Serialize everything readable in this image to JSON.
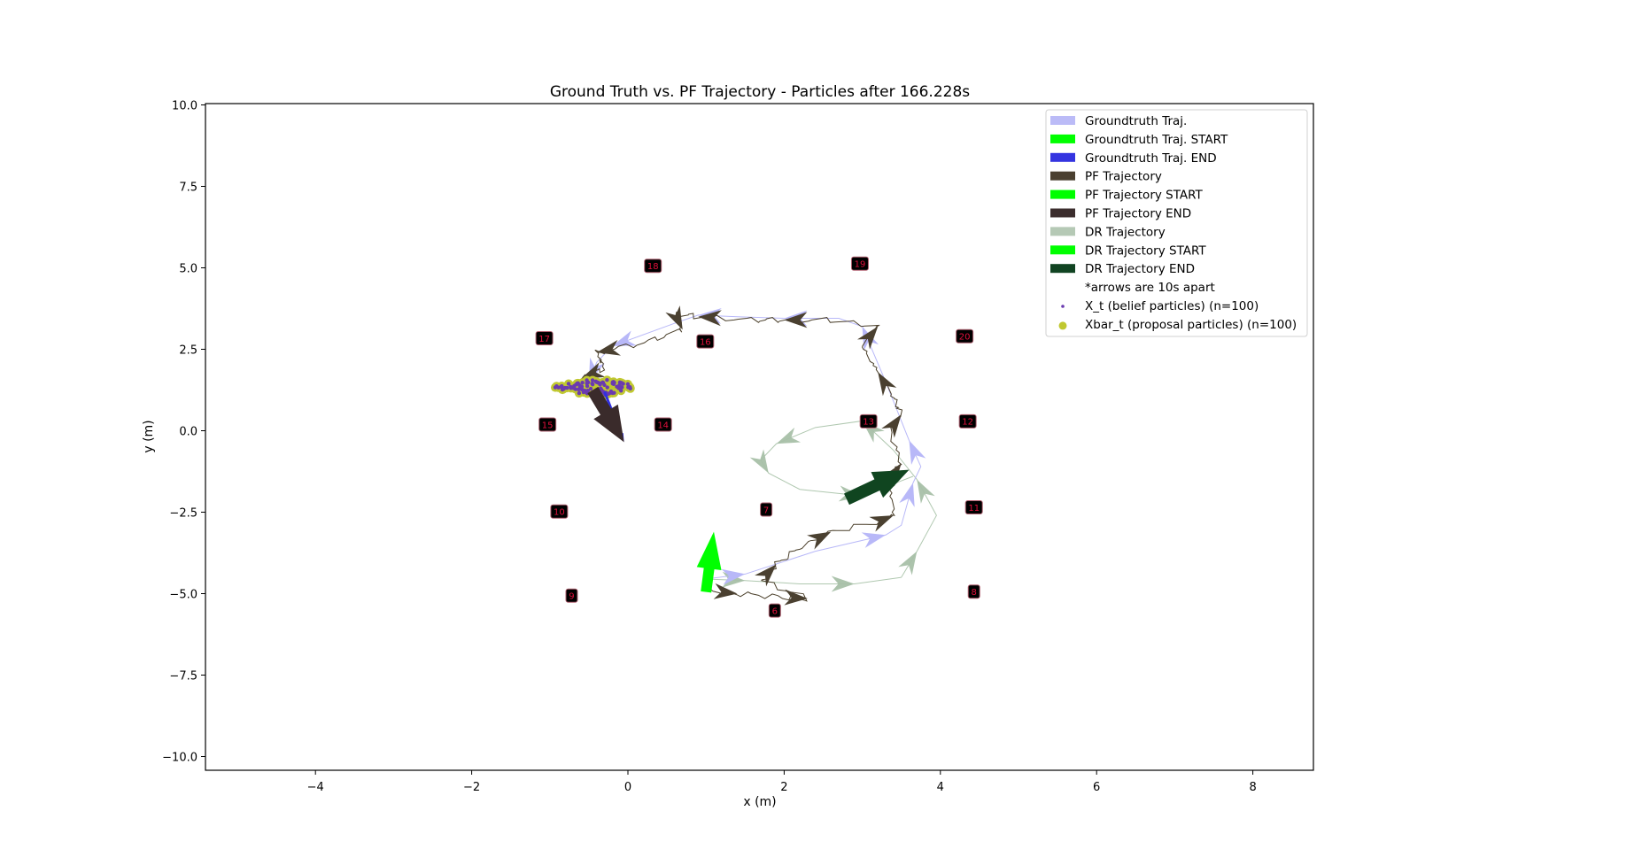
{
  "chart_data": {
    "type": "scatter",
    "title": "Ground Truth vs. PF Trajectory - Particles after 166.228s",
    "xlabel": "x (m)",
    "ylabel": "y (m)",
    "xlim": [
      -5.41,
      8.78
    ],
    "ylim": [
      -10.42,
      10.04
    ],
    "xticks": [
      -4,
      -2,
      0,
      2,
      4,
      6,
      8
    ],
    "xtick_labels": [
      "−4",
      "−2",
      "0",
      "2",
      "4",
      "6",
      "8"
    ],
    "yticks": [
      10.0,
      7.5,
      5.0,
      2.5,
      0.0,
      -2.5,
      -5.0,
      -7.5,
      -10.0
    ],
    "ytick_labels": [
      "10.0",
      "7.5",
      "5.0",
      "2.5",
      "0.0",
      "−2.5",
      "−5.0",
      "−7.5",
      "−10.0"
    ],
    "grid": false,
    "legend_position": "upper right",
    "colors": {
      "groundtruth": "#b8b8f8",
      "groundtruth_start": "#00ff00",
      "groundtruth_end": "#3030e0",
      "pf": "#4a3f2a",
      "pf_start": "#00ff00",
      "pf_end": "#3a2b2b",
      "dr": "#b0c8b0",
      "dr_start": "#00ff00",
      "dr_end": "#104520",
      "belief_particles": "#6a3ab0",
      "proposal_particles": "#c0c830",
      "landmark_fill": "#000000",
      "landmark_border": "#b06070",
      "landmark_text": "#e0103c"
    },
    "legend": [
      {
        "label": "Groundtruth Traj.",
        "swatch": "patch",
        "color": "#bbbbf7"
      },
      {
        "label": "Groundtruth Traj. START",
        "swatch": "patch",
        "color": "#00ff00"
      },
      {
        "label": "Groundtruth Traj. END",
        "swatch": "patch",
        "color": "#3434e0"
      },
      {
        "label": "PF Trajectory",
        "swatch": "patch",
        "color": "#4a4030"
      },
      {
        "label": "PF Trajectory START",
        "swatch": "patch",
        "color": "#00ff00"
      },
      {
        "label": "PF Trajectory END",
        "swatch": "patch",
        "color": "#3b2d2d"
      },
      {
        "label": "DR Trajectory",
        "swatch": "patch",
        "color": "#b5c9b5"
      },
      {
        "label": "DR Trajectory START",
        "swatch": "patch",
        "color": "#00ff00"
      },
      {
        "label": "DR Trajectory END",
        "swatch": "patch",
        "color": "#114422"
      },
      {
        "label": "*arrows are 10s apart",
        "swatch": "none",
        "color": ""
      },
      {
        "label": "X_t (belief particles) (n=100)",
        "swatch": "dot-small",
        "color": "#6a3ab0"
      },
      {
        "label": "Xbar_t (proposal particles) (n=100)",
        "swatch": "dot-large",
        "color": "#c0c830"
      }
    ],
    "landmarks": [
      {
        "id": "18",
        "x": 0.32,
        "y": 5.06
      },
      {
        "id": "19",
        "x": 2.97,
        "y": 5.13
      },
      {
        "id": "17",
        "x": -1.07,
        "y": 2.84
      },
      {
        "id": "16",
        "x": 0.99,
        "y": 2.74
      },
      {
        "id": "20",
        "x": 4.31,
        "y": 2.9
      },
      {
        "id": "15",
        "x": -1.03,
        "y": 0.19
      },
      {
        "id": "14",
        "x": 0.45,
        "y": 0.19
      },
      {
        "id": "13",
        "x": 3.08,
        "y": 0.29
      },
      {
        "id": "12",
        "x": 4.35,
        "y": 0.29
      },
      {
        "id": "10",
        "x": -0.88,
        "y": -2.48
      },
      {
        "id": "7",
        "x": 1.77,
        "y": -2.42
      },
      {
        "id": "11",
        "x": 4.43,
        "y": -2.35
      },
      {
        "id": "9",
        "x": -0.72,
        "y": -5.06
      },
      {
        "id": "8",
        "x": 4.43,
        "y": -4.94
      },
      {
        "id": "6",
        "x": 1.88,
        "y": -5.52
      }
    ],
    "series": [
      {
        "name": "Groundtruth Traj.",
        "points": [
          [
            1.0,
            -4.55
          ],
          [
            1.5,
            -4.4
          ],
          [
            2.4,
            -3.7
          ],
          [
            3.3,
            -3.2
          ],
          [
            3.5,
            -2.9
          ],
          [
            3.65,
            -1.6
          ],
          [
            3.75,
            -1.1
          ],
          [
            3.6,
            -0.3
          ],
          [
            3.3,
            1.5
          ],
          [
            3.0,
            3.2
          ],
          [
            2.7,
            3.45
          ],
          [
            2.0,
            3.45
          ],
          [
            1.4,
            3.5
          ],
          [
            0.9,
            3.55
          ],
          [
            0.6,
            3.3
          ],
          [
            -0.2,
            2.6
          ],
          [
            -0.4,
            2.1
          ],
          [
            -0.5,
            1.5
          ],
          [
            -0.1,
            0.1
          ]
        ]
      },
      {
        "name": "PF Trajectory",
        "points": [
          [
            1.0,
            -4.9
          ],
          [
            1.4,
            -5.0
          ],
          [
            1.9,
            -5.1
          ],
          [
            2.3,
            -5.15
          ],
          [
            1.7,
            -4.6
          ],
          [
            1.9,
            -4.1
          ],
          [
            2.2,
            -3.6
          ],
          [
            2.6,
            -3.1
          ],
          [
            3.2,
            -2.8
          ],
          [
            3.4,
            -2.6
          ],
          [
            3.35,
            -1.5
          ],
          [
            3.5,
            -1.0
          ],
          [
            3.35,
            0.0
          ],
          [
            3.5,
            0.5
          ],
          [
            3.4,
            1.0
          ],
          [
            3.2,
            1.8
          ],
          [
            3.0,
            2.6
          ],
          [
            3.2,
            3.2
          ],
          [
            2.6,
            3.4
          ],
          [
            2.0,
            3.4
          ],
          [
            1.6,
            3.4
          ],
          [
            0.9,
            3.5
          ],
          [
            0.6,
            3.6
          ],
          [
            0.7,
            3.1
          ],
          [
            0.2,
            2.7
          ],
          [
            -0.4,
            2.4
          ],
          [
            -0.3,
            1.9
          ],
          [
            -0.6,
            1.6
          ],
          [
            -0.4,
            1.3
          ]
        ]
      },
      {
        "name": "DR Trajectory",
        "points": [
          [
            1.0,
            -4.55
          ],
          [
            1.5,
            -4.6
          ],
          [
            2.2,
            -4.7
          ],
          [
            2.9,
            -4.7
          ],
          [
            3.5,
            -4.5
          ],
          [
            3.7,
            -3.7
          ],
          [
            3.95,
            -2.6
          ],
          [
            3.7,
            -1.5
          ],
          [
            3.4,
            -0.6
          ],
          [
            3.0,
            0.3
          ],
          [
            2.4,
            0.1
          ],
          [
            1.9,
            -0.4
          ],
          [
            1.7,
            -0.9
          ],
          [
            1.8,
            -1.3
          ],
          [
            2.2,
            -1.8
          ],
          [
            3.0,
            -2.0
          ],
          [
            3.65,
            -1.4
          ]
        ]
      }
    ],
    "start_arrow": {
      "from": [
        1.0,
        -4.95
      ],
      "to": [
        1.1,
        -3.1
      ],
      "color": "#00ff00"
    },
    "pf_end_arrow": {
      "from": [
        -0.45,
        1.25
      ],
      "to": [
        -0.05,
        -0.35
      ],
      "color": "#3a2b2b"
    },
    "gt_end_arrow": {
      "from": [
        -0.3,
        1.2
      ],
      "to": [
        -0.05,
        -0.35
      ],
      "color": "#3030e0"
    },
    "dr_end_arrow": {
      "from": [
        2.8,
        -2.1
      ],
      "to": [
        3.6,
        -1.2
      ],
      "color": "#104520"
    },
    "particles": {
      "center": [
        -0.35,
        1.3
      ],
      "spread_x": [
        -0.95,
        0.1
      ],
      "spread_y": [
        1.05,
        1.6
      ],
      "belief_count": 100,
      "proposal_count": 100
    },
    "time_s": 166.228
  },
  "labels": {
    "title": "Ground Truth vs. PF Trajectory - Particles after 166.228s",
    "xlabel": "x (m)",
    "ylabel": "y (m)"
  }
}
